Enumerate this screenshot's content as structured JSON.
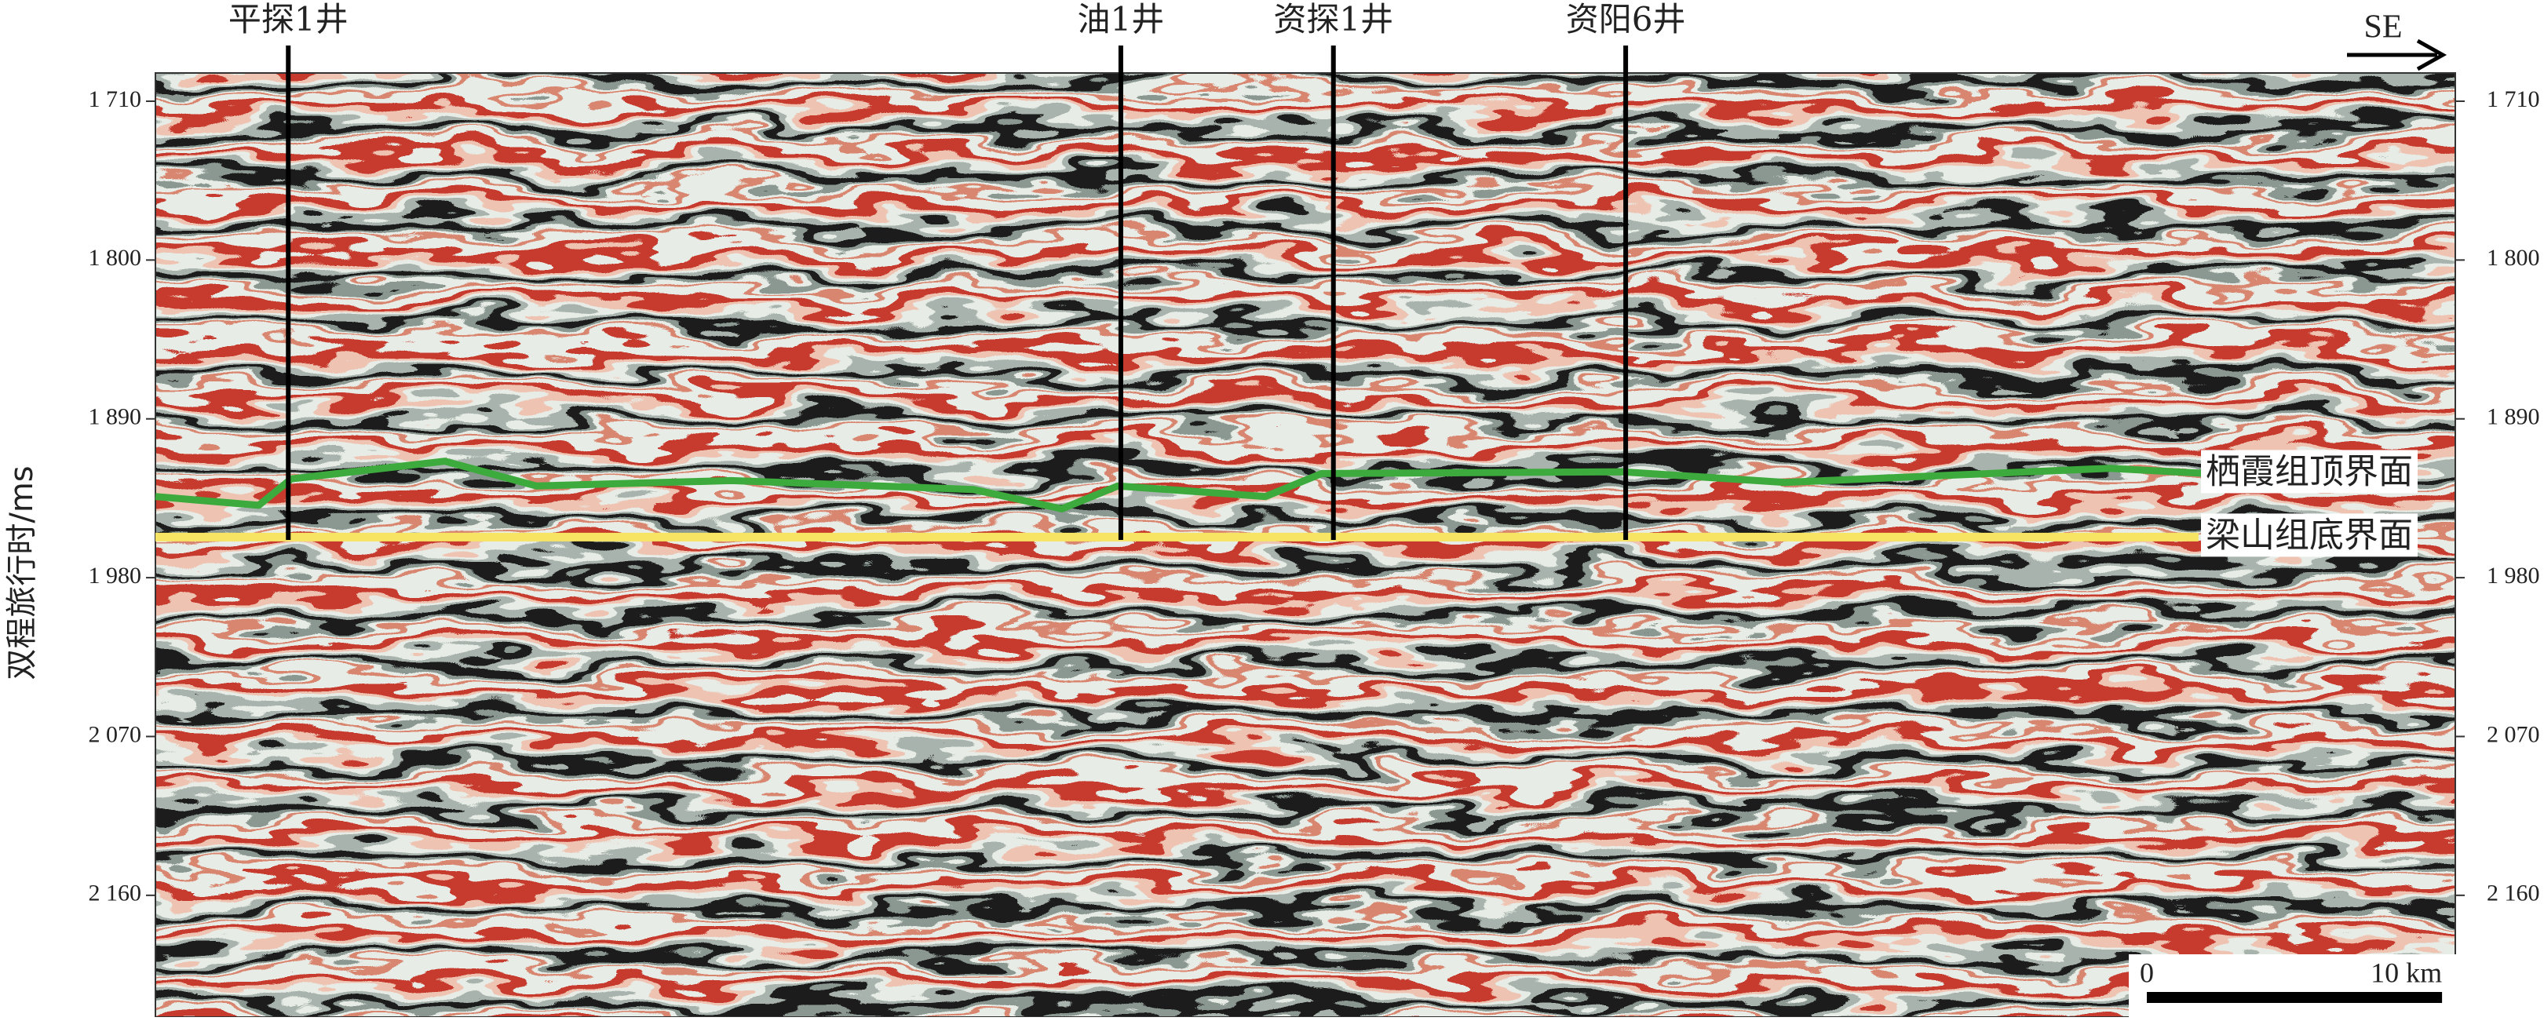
{
  "chart_data": {
    "type": "seismic-section",
    "y_label": "双程旅行时/ms",
    "xlim": [
      0,
      77.9
    ],
    "ylim": [
      1694,
      2229
    ],
    "yticks": [
      {
        "value": 1710,
        "label": "1 710"
      },
      {
        "value": 1800,
        "label": "1 800"
      },
      {
        "value": 1890,
        "label": "1 890"
      },
      {
        "value": 1980,
        "label": "1 980"
      },
      {
        "value": 2070,
        "label": "2 070"
      },
      {
        "value": 2160,
        "label": "2 160"
      }
    ],
    "direction": "SE",
    "wells": {
      "names": [
        "平探1井",
        "油1井",
        "资探1井",
        "资阳6井"
      ],
      "x": [
        4.5,
        32.7,
        39.9,
        49.8
      ]
    },
    "horizons": [
      {
        "name": "栖霞组顶界面",
        "color": "#3daa3d",
        "x": [
          0,
          3.5,
          4.6,
          9.8,
          12.9,
          19.5,
          27.7,
          30.7,
          32.6,
          37.6,
          39.5,
          49.7,
          55.2,
          66.2,
          69.5
        ],
        "values": [
          1934,
          1939,
          1924,
          1914,
          1928,
          1925,
          1930,
          1941,
          1928,
          1934,
          1921,
          1920,
          1926,
          1918,
          1921
        ]
      },
      {
        "name": "梁山组底界面",
        "color": "#f7e463",
        "x": [
          0,
          69.2
        ],
        "values": [
          1957,
          1957
        ]
      }
    ],
    "scale_bar": {
      "length": 10,
      "labels": [
        "0",
        "10 km"
      ]
    }
  }
}
